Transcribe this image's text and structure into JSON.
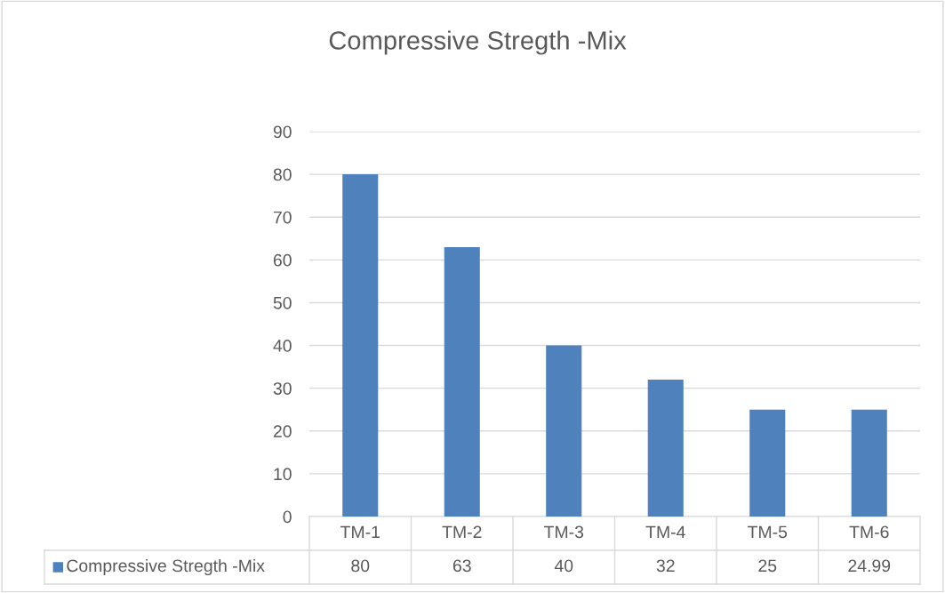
{
  "chart_data": {
    "type": "bar",
    "title": "Compressive Stregth -Mix",
    "categories": [
      "TM-1",
      "TM-2",
      "TM-3",
      "TM-4",
      "TM-5",
      "TM-6"
    ],
    "series": [
      {
        "name": "Compressive Stregth -Mix",
        "color": "#4f81bd",
        "values": [
          80,
          63,
          40,
          32,
          25,
          24.99
        ]
      }
    ],
    "ylim": [
      0,
      90
    ],
    "yticks": [
      0,
      10,
      20,
      30,
      40,
      50,
      60,
      70,
      80,
      90
    ],
    "grid": "y",
    "legend": "bottom",
    "data_labels": true
  }
}
